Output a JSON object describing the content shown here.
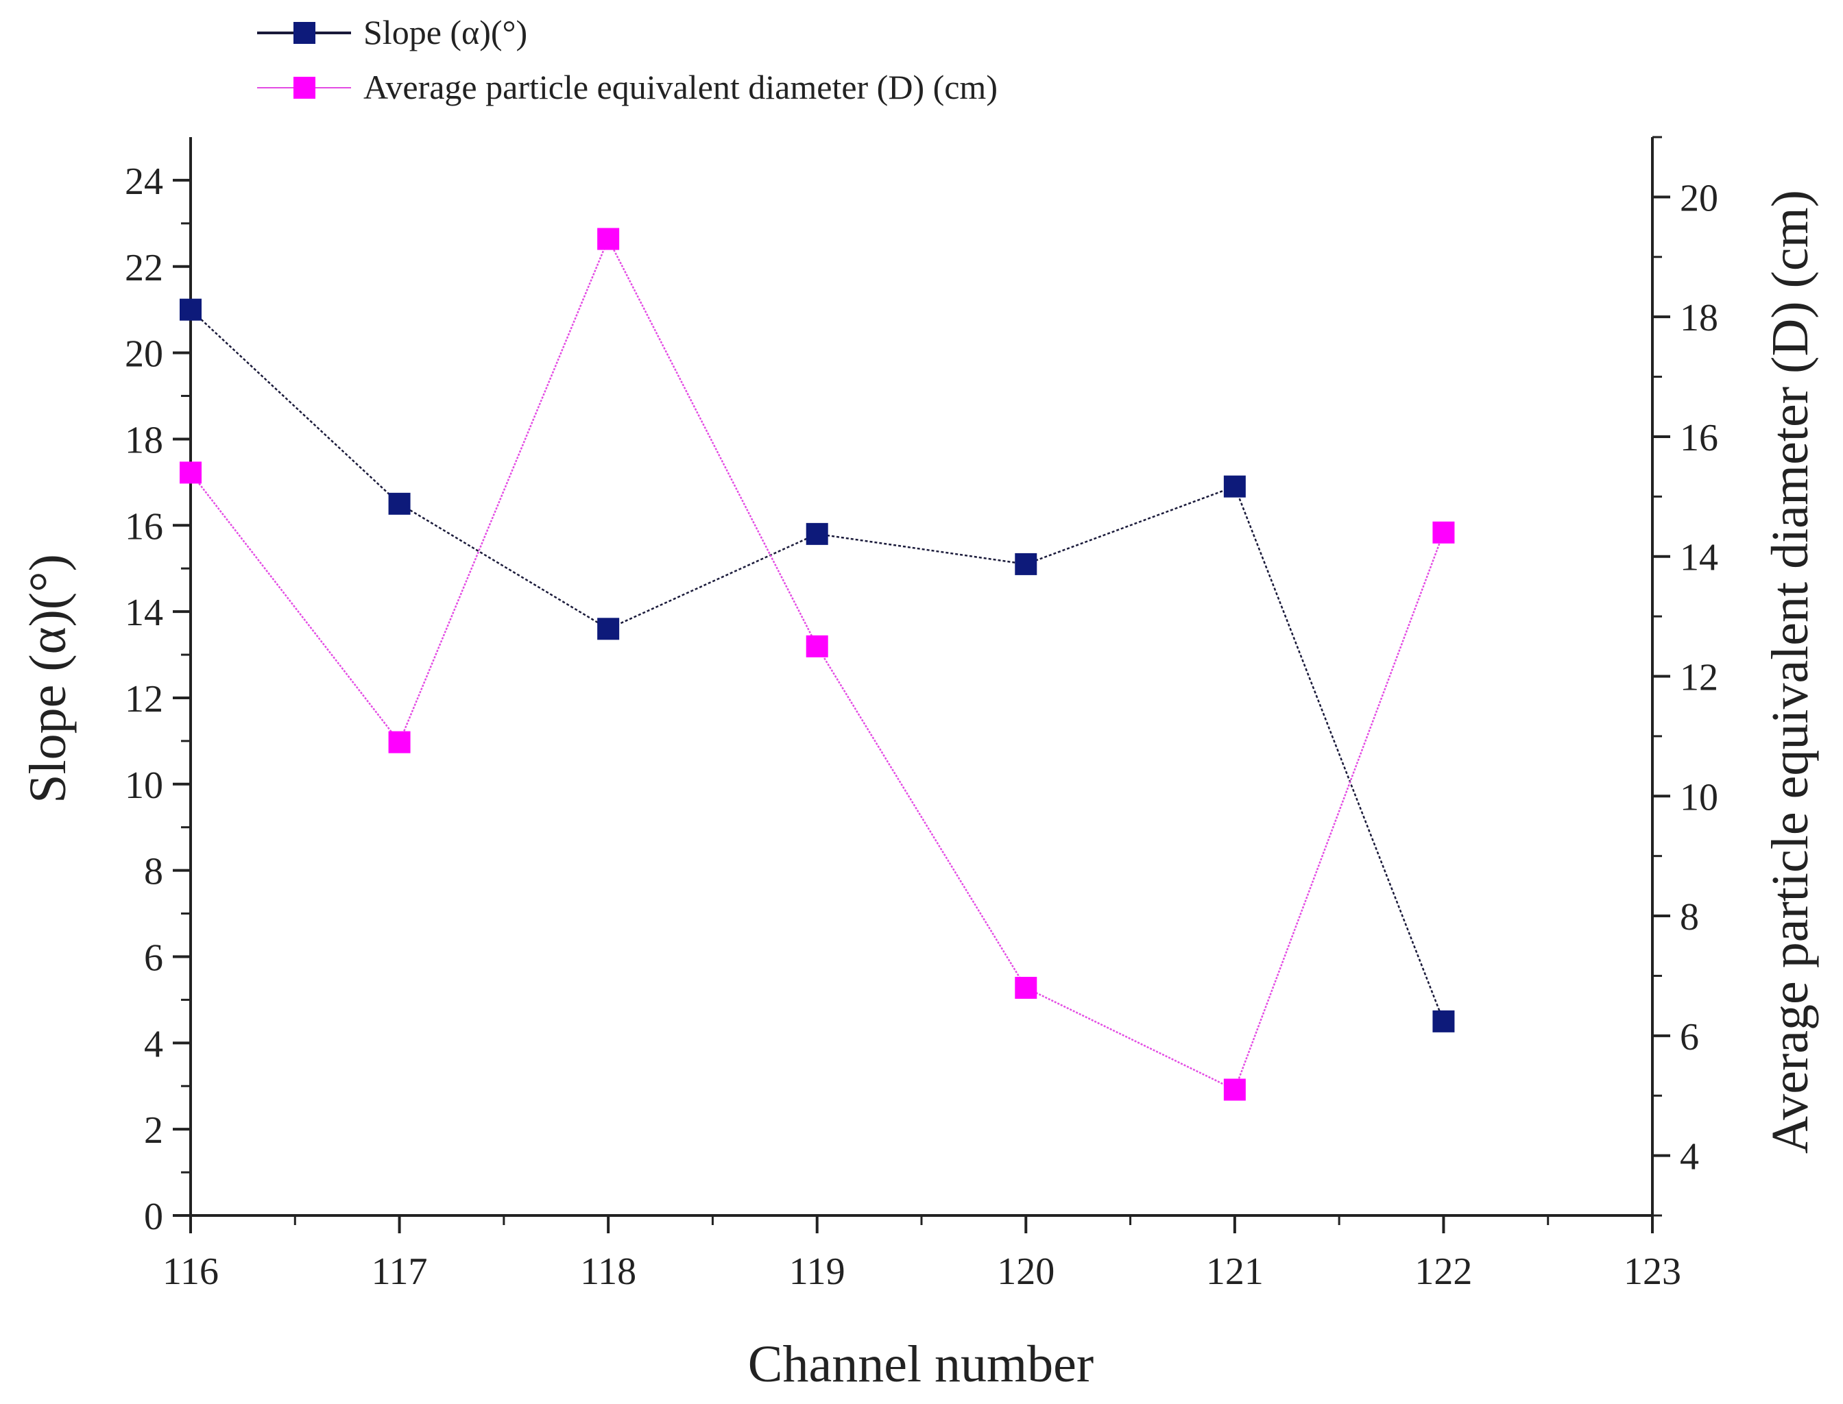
{
  "chart_data": {
    "type": "line",
    "title": "",
    "xlabel": "Channel number",
    "ylabel": "Slope (α)(°)",
    "y2label": "Average particle equivalent diameter (D) (cm)",
    "xlim": [
      116,
      123
    ],
    "ylim": [
      0,
      25
    ],
    "y2lim": [
      3,
      21
    ],
    "x_ticks": [
      116,
      117,
      118,
      119,
      120,
      121,
      122,
      123
    ],
    "y_ticks": [
      0,
      2,
      4,
      6,
      8,
      10,
      12,
      14,
      16,
      18,
      20,
      22,
      24
    ],
    "y2_ticks": [
      4,
      6,
      8,
      10,
      12,
      14,
      16,
      18,
      20
    ],
    "legend_position": "top-left",
    "grid": false,
    "series": [
      {
        "name": "Slope (α)(°)",
        "axis": "left",
        "color": "#0d1a7a",
        "line_color": "#1a1a3a",
        "dash": "solid",
        "x": [
          116,
          117,
          118,
          119,
          120,
          121,
          122
        ],
        "values": [
          21.0,
          16.5,
          13.6,
          15.8,
          15.1,
          16.9,
          4.5
        ]
      },
      {
        "name": "Average particle equivalent diameter (D) (cm)",
        "axis": "right",
        "color": "#ff00ff",
        "line_color": "#e34ce3",
        "dash": "solid",
        "x": [
          116,
          117,
          118,
          119,
          120,
          121,
          122
        ],
        "values": [
          15.4,
          10.9,
          19.3,
          12.5,
          6.8,
          5.1,
          14.4
        ]
      }
    ]
  }
}
